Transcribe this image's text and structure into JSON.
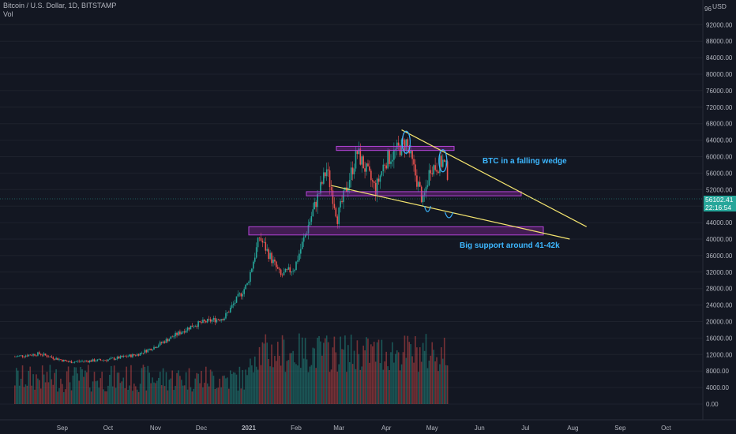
{
  "header": {
    "symbol_line": "Bitcoin / U.S. Dollar, 1D, BITSTAMP",
    "indicator": "Vol"
  },
  "currency": "USD",
  "last_price": {
    "value": "56102.41",
    "countdown": "22:16:54"
  },
  "annotations": {
    "wedge_label": "BTC in a falling wedge",
    "support_label": "Big support around 41-42k"
  },
  "colors": {
    "up": "#26a69a",
    "down": "#ef5350",
    "zone": "#9c27b0",
    "wedge": "#f4e46f",
    "text_annotation": "#3db7ff"
  },
  "chart_data": {
    "type": "candlestick",
    "title": "Bitcoin / U.S. Dollar, 1D, BITSTAMP",
    "x_tick_labels": [
      "Sep",
      "Oct",
      "Nov",
      "Dec",
      "2021",
      "Feb",
      "Mar",
      "Apr",
      "May",
      "Jun",
      "Jul",
      "Aug",
      "Sep",
      "Oct"
    ],
    "y_tick_labels": [
      "92000.00",
      "88000.00",
      "84000.00",
      "80000.00",
      "76000.00",
      "72000.00",
      "68000.00",
      "64000.00",
      "60000.00",
      "56000.00",
      "52000.00",
      "48000.00",
      "44000.00",
      "40000.00",
      "36000.00",
      "32000.00",
      "28000.00",
      "24000.00",
      "20000.00",
      "16000.00",
      "12000.00",
      "8000.00",
      "4000.00",
      "0.00"
    ],
    "y_axis_top_label": "96",
    "ylim": [
      0,
      96000
    ],
    "monthly_closes": [
      {
        "month": "2020-08",
        "close": 11600
      },
      {
        "month": "2020-09",
        "close": 10700
      },
      {
        "month": "2020-10",
        "close": 13800
      },
      {
        "month": "2020-11",
        "close": 19700
      },
      {
        "month": "2020-12",
        "close": 29000
      },
      {
        "month": "2021-01",
        "close": 33100
      },
      {
        "month": "2021-02",
        "close": 45200
      },
      {
        "month": "2021-03",
        "close": 58800
      },
      {
        "month": "2021-04",
        "close": 57700
      },
      {
        "month": "2021-05-11",
        "close": 56102
      }
    ],
    "key_levels": [
      {
        "name": "resistance zone",
        "low": 61500,
        "high": 62500
      },
      {
        "name": "mid zone",
        "low": 50500,
        "high": 51500
      },
      {
        "name": "support zone",
        "low": 41000,
        "high": 43000
      }
    ],
    "wedge_lines": [
      {
        "from": {
          "date": "2021-04-11",
          "price": 66500
        },
        "to": {
          "date": "2021-08-10",
          "price": 43000
        }
      },
      {
        "from": {
          "date": "2021-02-24",
          "price": 53000
        },
        "to": {
          "date": "2021-07-30",
          "price": 40000
        }
      }
    ]
  }
}
